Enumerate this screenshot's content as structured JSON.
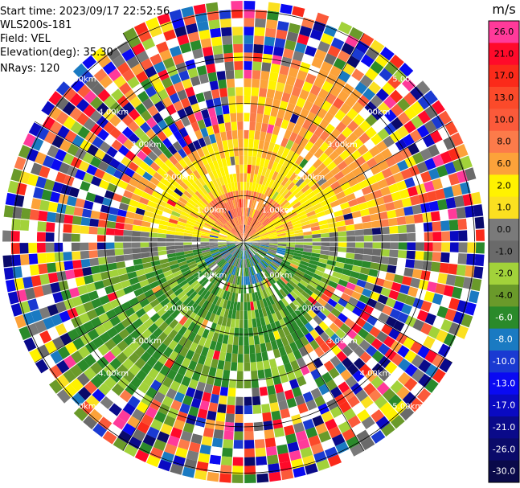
{
  "info": {
    "start_time": "Start time: 2023/09/17 22:52:56",
    "instrument": "WLS200s-181",
    "field": "Field: VEL",
    "elevation": "Elevation(deg): 35.30",
    "nrays": "NRays: 120"
  },
  "colorbar": {
    "unit": "m/s",
    "levels": [
      {
        "label": "26.0",
        "color": "#ff3a9a"
      },
      {
        "label": "21.0",
        "color": "#ff0a2a"
      },
      {
        "label": "17.0",
        "color": "#fb2a1a"
      },
      {
        "label": "13.0",
        "color": "#fb4a2a"
      },
      {
        "label": "10.0",
        "color": "#fb5a3a"
      },
      {
        "label": "8.0",
        "color": "#fc7b4a"
      },
      {
        "label": "6.0",
        "color": "#fca23a"
      },
      {
        "label": "2.0",
        "color": "#fff200"
      },
      {
        "label": "1.0",
        "color": "#fbe020"
      },
      {
        "label": "0.0",
        "color": "#7a7a7a"
      },
      {
        "label": "-1.0",
        "color": "#6a6a6a"
      },
      {
        "label": "-2.0",
        "color": "#a2d23a"
      },
      {
        "label": "-4.0",
        "color": "#6a9a2a"
      },
      {
        "label": "-6.0",
        "color": "#2a8a2a"
      },
      {
        "label": "-8.0",
        "color": "#1a7ac2"
      },
      {
        "label": "-10.0",
        "color": "#1a3ad2"
      },
      {
        "label": "-13.0",
        "color": "#0a0af2"
      },
      {
        "label": "-17.0",
        "color": "#0a0ac2"
      },
      {
        "label": "-21.0",
        "color": "#0a0a8a"
      },
      {
        "label": "-26.0",
        "color": "#0a0a6a"
      },
      {
        "label": "-30.0",
        "color": ""
      }
    ]
  },
  "range_rings": {
    "labels": [
      "1.00km",
      "2.00km",
      "3.00km",
      "4.00km",
      "5.00km"
    ]
  },
  "chart_data": {
    "type": "heatmap",
    "projection": "polar (PPI)",
    "field": "VEL",
    "units": "m/s",
    "nrays": 120,
    "elevation_deg": 35.3,
    "range_rings_km": [
      1,
      2,
      3,
      4,
      5
    ],
    "colorbar_ticks": [
      26.0,
      21.0,
      17.0,
      13.0,
      10.0,
      8.0,
      6.0,
      2.0,
      1.0,
      0.0,
      -1.0,
      -2.0,
      -4.0,
      -6.0,
      -8.0,
      -10.0,
      -13.0,
      -17.0,
      -21.0,
      -26.0,
      -30.0
    ]
  }
}
